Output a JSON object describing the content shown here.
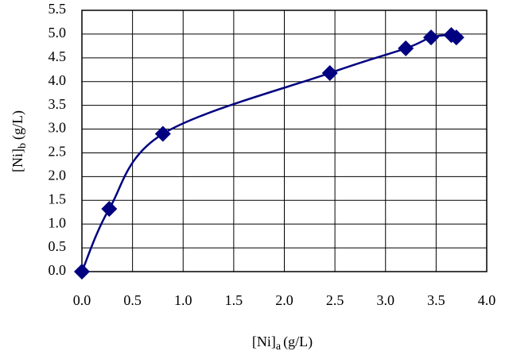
{
  "chart_data": {
    "type": "line",
    "xlabel": {
      "main": "[Ni]",
      "sub": "a",
      "unit": "(g/L)"
    },
    "ylabel": {
      "main": "[Ni]",
      "sub": "b",
      "unit": "(g/L)"
    },
    "x": [
      0,
      0.27,
      0.8,
      2.45,
      3.2,
      3.45,
      3.65,
      3.7
    ],
    "series": [
      {
        "color": "#000080",
        "values": [
          0,
          1.32,
          2.9,
          4.18,
          4.7,
          4.93,
          4.98,
          4.93
        ]
      }
    ],
    "xlim": [
      0,
      4
    ],
    "xticks": [
      {
        "value": 0,
        "label": "0.0"
      },
      0.5,
      {
        "value": 1,
        "label": "1.0"
      },
      1.5,
      {
        "value": 2,
        "label": "2.0"
      },
      2.5,
      {
        "value": 3,
        "label": "3.0"
      },
      3.5,
      {
        "value": 4,
        "label": "4.0"
      }
    ],
    "ylim": [
      0,
      5.5
    ],
    "yticks": [
      {
        "value": 0,
        "label": "0.0"
      },
      0.5,
      {
        "value": 1,
        "label": "1.0"
      },
      1.5,
      {
        "value": 2,
        "label": "2.0"
      },
      2.5,
      {
        "value": 3,
        "label": "3.0"
      },
      3.5,
      {
        "value": 4,
        "label": "4.0"
      },
      4.5,
      {
        "value": 5,
        "label": "5.0"
      },
      5.5
    ],
    "grid": true,
    "smooth": true
  }
}
